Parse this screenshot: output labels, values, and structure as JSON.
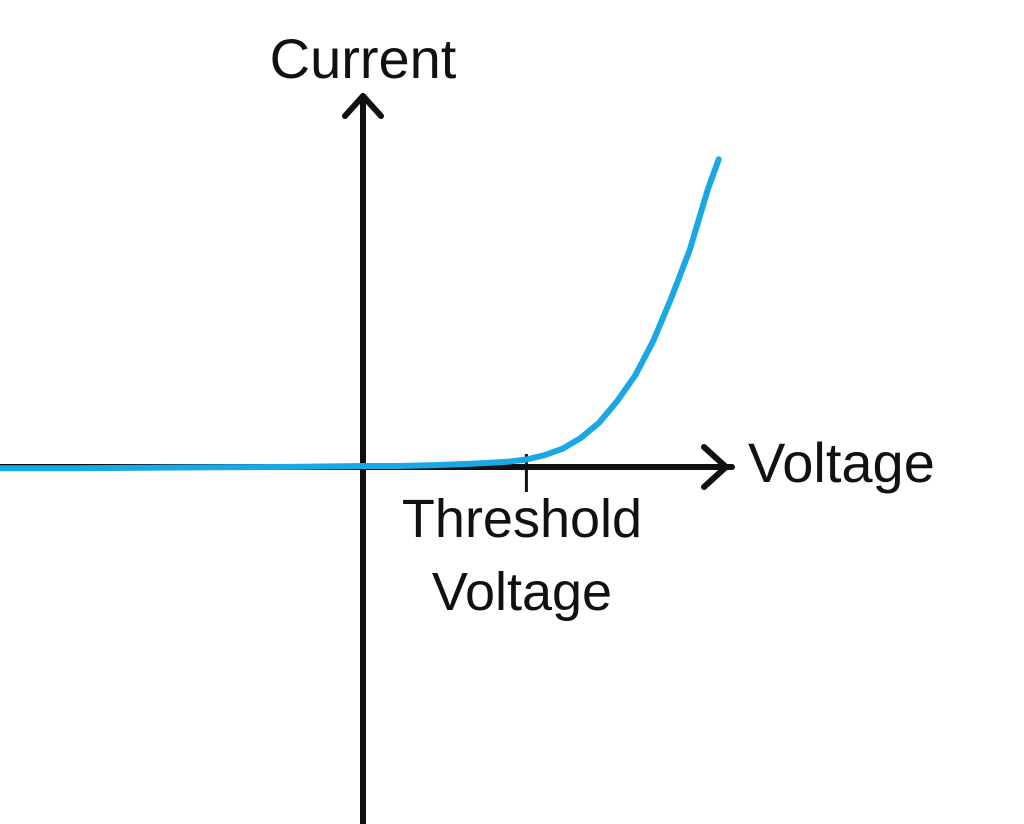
{
  "colors": {
    "curve": "#1aa7e6",
    "axis": "#111111",
    "background": "#ffffff"
  },
  "chart_data": {
    "type": "line",
    "title": "",
    "xlabel": "Voltage",
    "ylabel": "Current",
    "annotations": [
      {
        "text_lines": [
          "Threshold",
          "Voltage"
        ],
        "x": 0.45
      }
    ],
    "grid": false,
    "legend": "none",
    "xlim": [
      -1,
      1
    ],
    "ylim": [
      -1,
      0.9
    ],
    "axis_arrows": true,
    "series": [
      {
        "color": "#1aa7e6",
        "x": [
          -1.0,
          -0.8,
          -0.6,
          -0.4,
          -0.2,
          0.0,
          0.1,
          0.2,
          0.3,
          0.4,
          0.45,
          0.5,
          0.55,
          0.6,
          0.65,
          0.7,
          0.75,
          0.8,
          0.85,
          0.9,
          0.95,
          0.98
        ],
        "y": [
          -0.005,
          -0.005,
          -0.004,
          -0.003,
          -0.002,
          0.0,
          0.0,
          0.002,
          0.005,
          0.01,
          0.015,
          0.025,
          0.04,
          0.065,
          0.1,
          0.15,
          0.21,
          0.29,
          0.39,
          0.5,
          0.64,
          0.71
        ]
      }
    ]
  }
}
